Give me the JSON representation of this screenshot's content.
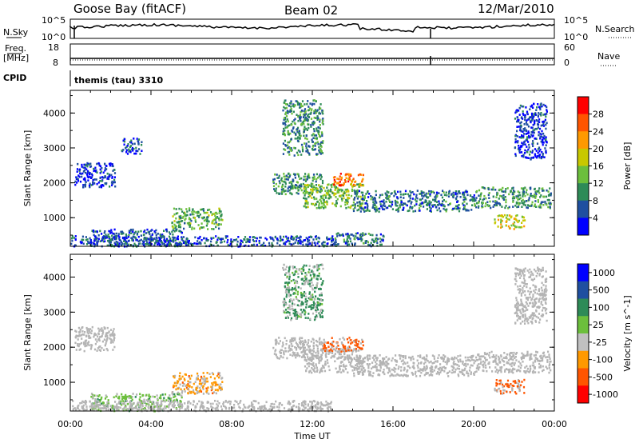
{
  "header": {
    "station": "Goose Bay (fitACF)",
    "beam": "Beam 02",
    "date": "12/Mar/2010"
  },
  "strip_labels": {
    "nsky": "N.Sky",
    "nsky_ticks": [
      "10^5",
      "10^0"
    ],
    "nsearch": "N.Search",
    "nsearch_ticks": [
      "10^5",
      "10^0"
    ],
    "freq": "Freq.",
    "freq_unit": "[MHz]",
    "freq_ticks": [
      "18",
      "8"
    ],
    "nave": "Nave",
    "nave_ticks": [
      "60",
      "0"
    ],
    "cpid": "CPID",
    "cpid_text": "themis (tau) 3310"
  },
  "colors": {
    "power_scale": [
      "#0000ff",
      "#1f4fa0",
      "#2e8b57",
      "#6cbf3c",
      "#c8c800",
      "#ff9900",
      "#ff5500",
      "#ff0000"
    ],
    "velocity_scale": [
      "#0000ff",
      "#1f4fa0",
      "#2e8b57",
      "#6cbf3c",
      "#c0c0c0",
      "#ff9900",
      "#ff5500",
      "#ff0000"
    ],
    "ground_scatter": "#b4b4b4"
  },
  "chart_data": [
    {
      "type": "heatmap",
      "name": "power",
      "ylabel": "Slant Range [km]",
      "xlabel": "",
      "yticks": [
        "1000",
        "2000",
        "3000",
        "4000"
      ],
      "xticks": [
        "00:00",
        "04:00",
        "08:00",
        "12:00",
        "16:00",
        "20:00",
        "00:00"
      ],
      "x_range_hours": [
        0,
        24
      ],
      "ylim": [
        180,
        4650
      ],
      "colorbar": {
        "label": "Power [dB]",
        "ticks": [
          "4",
          "8",
          "12",
          "16",
          "20",
          "24",
          "28"
        ],
        "range": [
          0,
          32
        ]
      },
      "scatter_regions": [
        {
          "t": [
            0.2,
            2.2
          ],
          "r": [
            1900,
            2600
          ],
          "value": 4
        },
        {
          "t": [
            1.0,
            5.5
          ],
          "r": [
            200,
            700
          ],
          "value": 6
        },
        {
          "t": [
            5.0,
            7.5
          ],
          "r": [
            700,
            1300
          ],
          "value": 12
        },
        {
          "t": [
            2.5,
            3.5
          ],
          "r": [
            2850,
            3300
          ],
          "value": 6
        },
        {
          "t": [
            0.0,
            13.0
          ],
          "r": [
            200,
            500
          ],
          "value": 6
        },
        {
          "t": [
            10.5,
            12.5
          ],
          "r": [
            2800,
            4400
          ],
          "value": 10
        },
        {
          "t": [
            10.0,
            12.5
          ],
          "r": [
            1700,
            2300
          ],
          "value": 10
        },
        {
          "t": [
            11.5,
            14.5
          ],
          "r": [
            1300,
            2000
          ],
          "value": 14
        },
        {
          "t": [
            13.0,
            14.5
          ],
          "r": [
            1950,
            2300
          ],
          "value": 24
        },
        {
          "t": [
            14.0,
            20.0
          ],
          "r": [
            1200,
            1800
          ],
          "value": 8
        },
        {
          "t": [
            20.0,
            23.8
          ],
          "r": [
            1300,
            1900
          ],
          "value": 10
        },
        {
          "t": [
            21.0,
            22.5
          ],
          "r": [
            700,
            1100
          ],
          "value": 18
        },
        {
          "t": [
            22.0,
            23.6
          ],
          "r": [
            2700,
            4300
          ],
          "value": 4
        },
        {
          "t": [
            13.0,
            15.5
          ],
          "r": [
            200,
            600
          ],
          "value": 8
        }
      ]
    },
    {
      "type": "heatmap",
      "name": "velocity",
      "ylabel": "Slant Range [km]",
      "xlabel": "Time UT",
      "yticks": [
        "1000",
        "2000",
        "3000",
        "4000"
      ],
      "xticks": [
        "00:00",
        "04:00",
        "08:00",
        "12:00",
        "16:00",
        "20:00",
        "00:00"
      ],
      "x_range_hours": [
        0,
        24
      ],
      "ylim": [
        180,
        4650
      ],
      "colorbar": {
        "label": "Velocity [m s^-1]",
        "ticks": [
          "1000",
          "500",
          "100",
          "25",
          "-25",
          "-100",
          "-500",
          "-1000"
        ],
        "range": [
          -1000,
          1000
        ]
      },
      "scatter_regions": [
        {
          "t": [
            0.2,
            2.2
          ],
          "r": [
            1900,
            2600
          ],
          "value": 0
        },
        {
          "t": [
            1.0,
            5.5
          ],
          "r": [
            200,
            700
          ],
          "value": 80
        },
        {
          "t": [
            5.0,
            7.5
          ],
          "r": [
            700,
            1300
          ],
          "value": -80
        },
        {
          "t": [
            0.0,
            13.0
          ],
          "r": [
            200,
            500
          ],
          "value": 0
        },
        {
          "t": [
            10.5,
            12.5
          ],
          "r": [
            2800,
            4400
          ],
          "value": 120
        },
        {
          "t": [
            10.0,
            12.5
          ],
          "r": [
            1700,
            2300
          ],
          "value": 0
        },
        {
          "t": [
            11.5,
            14.5
          ],
          "r": [
            1300,
            2000
          ],
          "value": 0
        },
        {
          "t": [
            12.5,
            14.5
          ],
          "r": [
            1900,
            2300
          ],
          "value": -150
        },
        {
          "t": [
            14.0,
            20.0
          ],
          "r": [
            1200,
            1800
          ],
          "value": 0
        },
        {
          "t": [
            20.0,
            23.8
          ],
          "r": [
            1300,
            1900
          ],
          "value": 0
        },
        {
          "t": [
            21.0,
            22.5
          ],
          "r": [
            700,
            1100
          ],
          "value": -150
        },
        {
          "t": [
            22.0,
            23.6
          ],
          "r": [
            2700,
            4300
          ],
          "value": 0
        }
      ]
    }
  ]
}
